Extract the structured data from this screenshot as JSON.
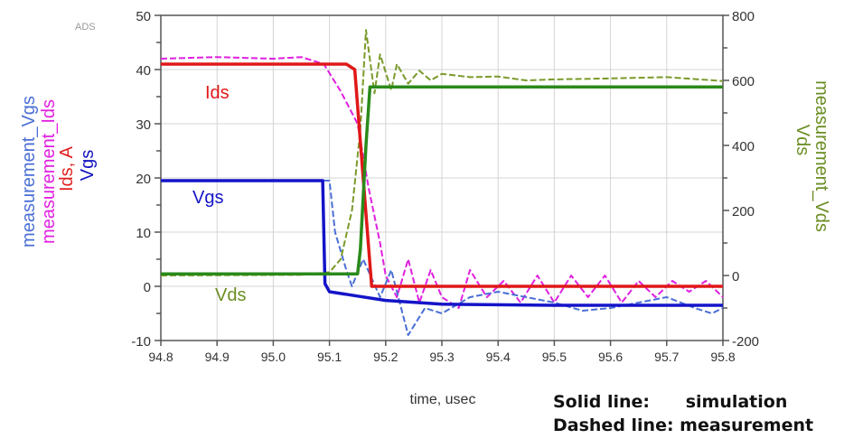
{
  "chart_data": {
    "type": "line",
    "watermark": "ADS",
    "xlabel": "time, usec",
    "xlim": [
      94.8,
      95.8
    ],
    "xticks": [
      94.8,
      94.9,
      95.0,
      95.1,
      95.2,
      95.3,
      95.4,
      95.5,
      95.6,
      95.7,
      95.8
    ],
    "left_axis": {
      "labels": [
        {
          "text": "measurement_Vgs",
          "color": "#4a6fd6"
        },
        {
          "text": "measurement_Ids",
          "color": "#e020e0"
        },
        {
          "text": "Ids, A",
          "color": "#e02020"
        },
        {
          "text": "Vgs",
          "color": "#1010c0"
        }
      ],
      "ylim": [
        -10,
        50
      ],
      "ticks": [
        -10,
        0,
        10,
        20,
        30,
        40,
        50
      ]
    },
    "right_axis": {
      "labels": [
        {
          "text": "measurement_Vds",
          "color": "#6b8e23"
        },
        {
          "text": "Vds",
          "color": "#6b8e23"
        }
      ],
      "ylim": [
        -200,
        800
      ],
      "ticks": [
        -200,
        0,
        200,
        400,
        600,
        800
      ]
    },
    "grid": true,
    "series": [
      {
        "name": "Ids",
        "axis": "left",
        "color": "#e01818",
        "style": "solid",
        "points": [
          [
            94.8,
            41
          ],
          [
            95.13,
            41
          ],
          [
            95.145,
            40
          ],
          [
            95.16,
            20
          ],
          [
            95.175,
            0
          ],
          [
            95.8,
            0
          ]
        ]
      },
      {
        "name": "Vgs",
        "axis": "left",
        "color": "#1414c8",
        "style": "solid",
        "points": [
          [
            94.8,
            19.5
          ],
          [
            95.088,
            19.5
          ],
          [
            95.092,
            0.5
          ],
          [
            95.1,
            -1
          ],
          [
            95.15,
            -1.8
          ],
          [
            95.2,
            -2.6
          ],
          [
            95.3,
            -3.3
          ],
          [
            95.5,
            -3.5
          ],
          [
            95.8,
            -3.5
          ]
        ]
      },
      {
        "name": "Vds",
        "axis": "right",
        "color": "#2a8a1a",
        "style": "solid",
        "points": [
          [
            94.8,
            5
          ],
          [
            95.15,
            5
          ],
          [
            95.155,
            80
          ],
          [
            95.165,
            400
          ],
          [
            95.172,
            580
          ],
          [
            95.8,
            580
          ]
        ]
      },
      {
        "name": "measurement_Ids",
        "axis": "left",
        "color": "#e020e0",
        "style": "dashed",
        "points": [
          [
            94.8,
            42
          ],
          [
            94.9,
            42.3
          ],
          [
            95.0,
            42
          ],
          [
            95.05,
            42.3
          ],
          [
            95.09,
            41
          ],
          [
            95.12,
            36
          ],
          [
            95.15,
            30
          ],
          [
            95.17,
            18
          ],
          [
            95.19,
            8
          ],
          [
            95.2,
            2
          ],
          [
            95.22,
            -2
          ],
          [
            95.24,
            5
          ],
          [
            95.26,
            -3
          ],
          [
            95.28,
            3
          ],
          [
            95.3,
            -2
          ],
          [
            95.33,
            -4
          ],
          [
            95.35,
            3
          ],
          [
            95.38,
            -2
          ],
          [
            95.41,
            1
          ],
          [
            95.44,
            -3
          ],
          [
            95.47,
            2
          ],
          [
            95.5,
            -3
          ],
          [
            95.53,
            2
          ],
          [
            95.56,
            -2
          ],
          [
            95.59,
            2
          ],
          [
            95.62,
            -3
          ],
          [
            95.65,
            1
          ],
          [
            95.68,
            -2
          ],
          [
            95.71,
            1
          ],
          [
            95.74,
            -1
          ],
          [
            95.77,
            1
          ],
          [
            95.8,
            -2
          ]
        ]
      },
      {
        "name": "measurement_Vgs",
        "axis": "left",
        "color": "#4a6fd6",
        "style": "dashed",
        "points": [
          [
            94.8,
            19.5
          ],
          [
            95.0,
            19.6
          ],
          [
            95.1,
            19.5
          ],
          [
            95.11,
            10
          ],
          [
            95.13,
            3
          ],
          [
            95.14,
            0
          ],
          [
            95.16,
            5
          ],
          [
            95.19,
            -2
          ],
          [
            95.21,
            3
          ],
          [
            95.24,
            -9
          ],
          [
            95.27,
            -4
          ],
          [
            95.3,
            -5
          ],
          [
            95.35,
            -2
          ],
          [
            95.4,
            -1
          ],
          [
            95.45,
            -2
          ],
          [
            95.5,
            -3
          ],
          [
            95.55,
            -4.5
          ],
          [
            95.6,
            -4
          ],
          [
            95.65,
            -3
          ],
          [
            95.7,
            -2
          ],
          [
            95.75,
            -4
          ],
          [
            95.78,
            -5
          ],
          [
            95.8,
            -4
          ]
        ]
      },
      {
        "name": "measurement_Vds",
        "axis": "right",
        "color": "#7a9a2a",
        "style": "dashed",
        "points": [
          [
            94.8,
            0
          ],
          [
            95.05,
            2
          ],
          [
            95.1,
            10
          ],
          [
            95.12,
            50
          ],
          [
            95.14,
            200
          ],
          [
            95.155,
            450
          ],
          [
            95.165,
            755
          ],
          [
            95.18,
            560
          ],
          [
            95.19,
            680
          ],
          [
            95.21,
            570
          ],
          [
            95.22,
            650
          ],
          [
            95.24,
            590
          ],
          [
            95.26,
            630
          ],
          [
            95.28,
            600
          ],
          [
            95.3,
            620
          ],
          [
            95.35,
            610
          ],
          [
            95.4,
            612
          ],
          [
            95.45,
            600
          ],
          [
            95.5,
            603
          ],
          [
            95.6,
            606
          ],
          [
            95.7,
            610
          ],
          [
            95.8,
            598
          ]
        ]
      }
    ],
    "annotations": [
      {
        "text": "Ids",
        "color": "#e01818"
      },
      {
        "text": "Vgs",
        "color": "#1414c8"
      },
      {
        "text": "Vds",
        "color": "#6b8e23"
      }
    ]
  },
  "notes": {
    "solid": "Solid line:      simulation",
    "dashed": "Dashed line: measurement"
  }
}
